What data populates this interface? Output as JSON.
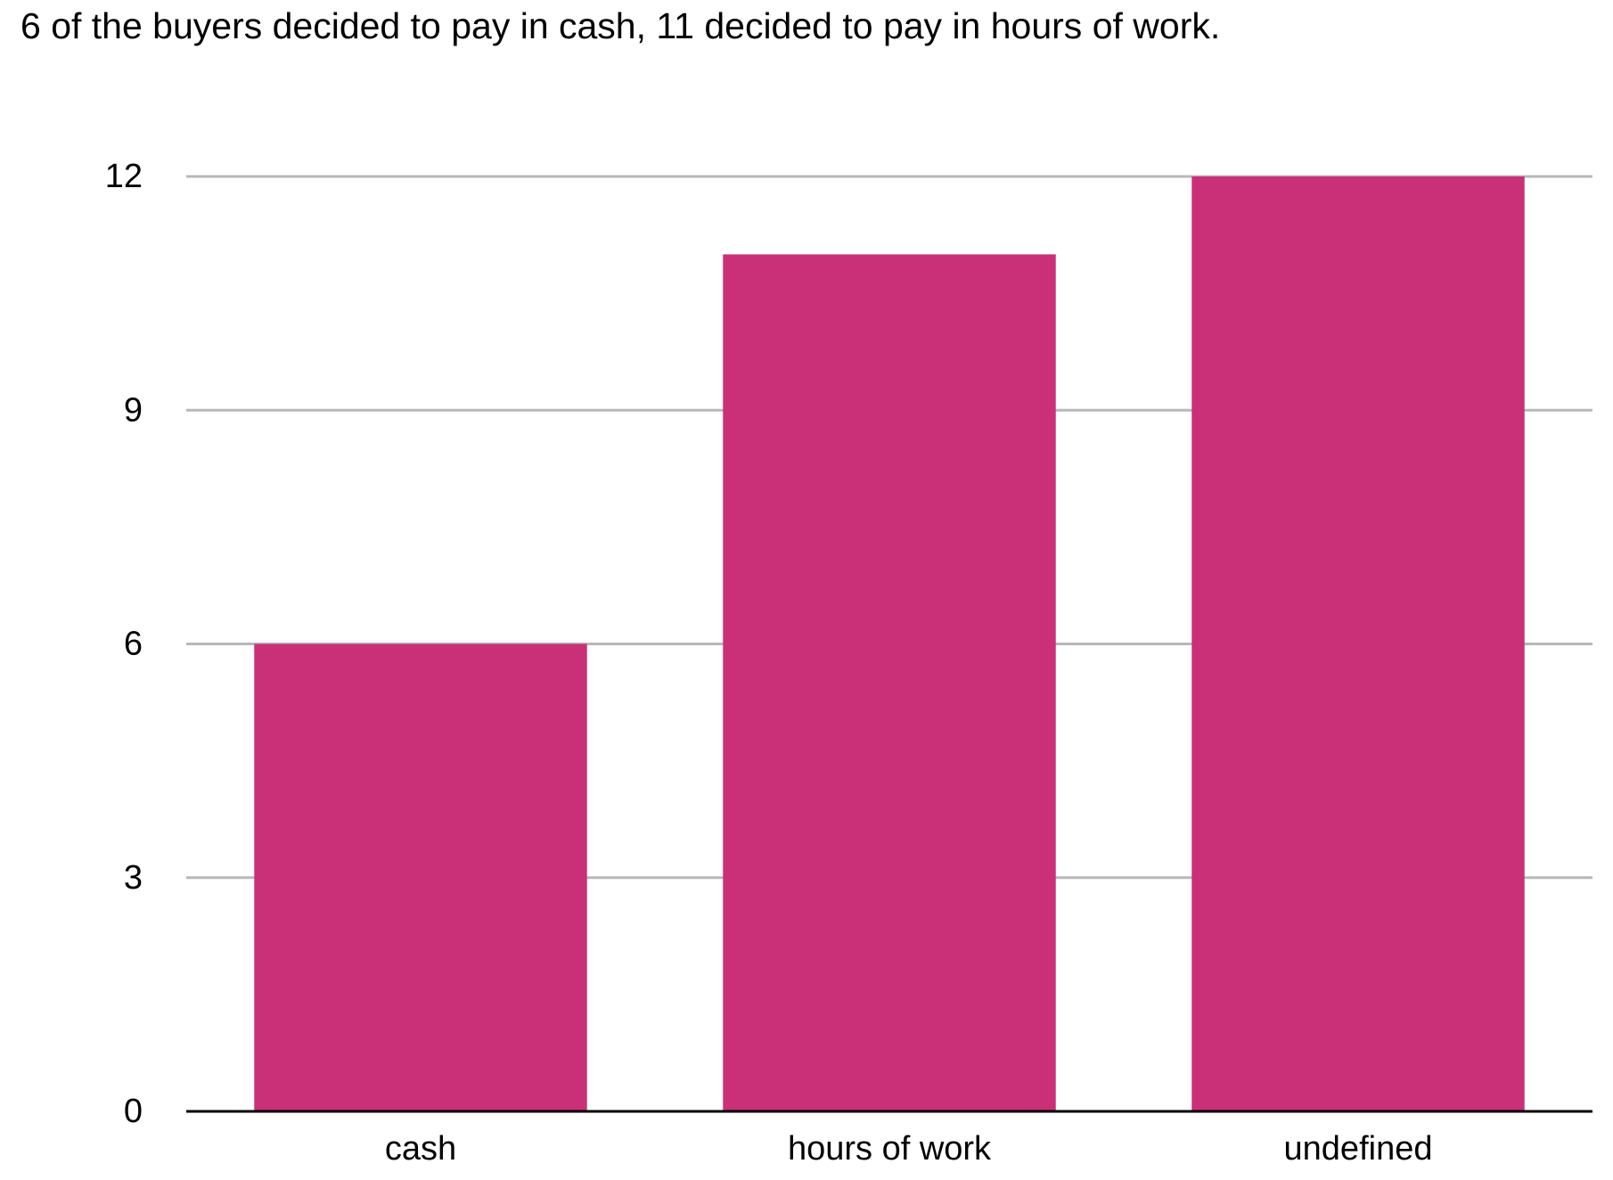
{
  "chart_data": {
    "type": "bar",
    "title": "6 of the buyers decided to pay in cash, 11 decided to pay in hours of work.",
    "categories": [
      "cash",
      "hours of work",
      "undefined"
    ],
    "values": [
      6,
      11,
      12
    ],
    "color": "#c93077",
    "ylim": [
      0,
      12
    ],
    "yticks": [
      0,
      3,
      6,
      9,
      12
    ],
    "grid": true
  }
}
